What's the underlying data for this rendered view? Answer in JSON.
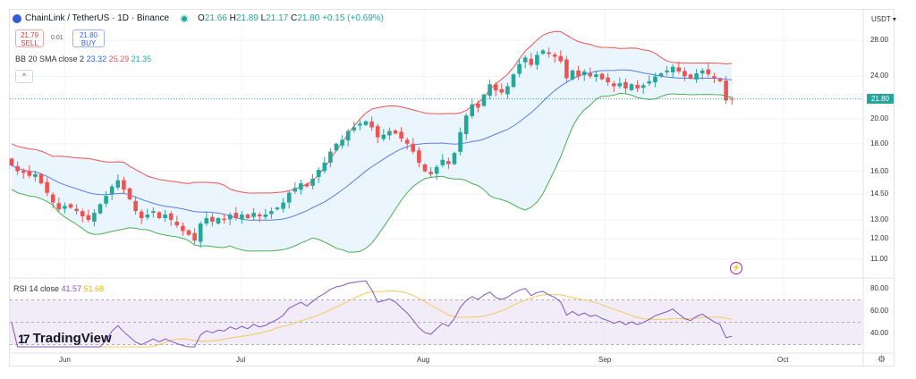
{
  "header": {
    "symbol": "ChainLink / TetherUS · 1D · Binance",
    "ohlc": {
      "o_label": "O",
      "o": "21.66",
      "h_label": "H",
      "h": "21.89",
      "l_label": "L",
      "l": "21.17",
      "c_label": "C",
      "c": "21.80",
      "change": "+0.15 (+0.69%)"
    },
    "sell_price": "21.79",
    "sell_label": "SELL",
    "spread": "0.01",
    "buy_price": "21.80",
    "buy_label": "BUY",
    "bb_label": "BB 20 SMA close 2",
    "bb_basis": "23.32",
    "bb_upper": "25.29",
    "bb_lower": "21.35",
    "collapse_icon": "^"
  },
  "rsi_legend": {
    "label": "RSI 14 close",
    "rsi": "41.57",
    "ma": "51.68"
  },
  "price_axis": {
    "currency": "USDT ▾",
    "last_price": "21.80",
    "ticks": [
      "28.00",
      "24.00",
      "20.00",
      "18.00",
      "16.00",
      "14.50",
      "13.00",
      "12.00",
      "11.00"
    ]
  },
  "rsi_axis": {
    "ticks": [
      "80.00",
      "60.00",
      "40.00"
    ]
  },
  "time_axis": {
    "labels": [
      "Jun",
      "Jul",
      "Aug",
      "Sep",
      "Oct"
    ]
  },
  "watermark": "TradingView",
  "colors": {
    "up": "#26a69a",
    "down": "#ef5350",
    "bb_basis": "#5b7fe0",
    "bb_upper": "#ef5350",
    "bb_lower": "#4caf50",
    "rsi": "#7e57c2",
    "rsi_ma": "#f5c95c"
  },
  "chart_data": {
    "type": "candlestick",
    "title": "ChainLink / TetherUS · 1D · Binance",
    "scale": "log",
    "ylim": [
      10.5,
      29.5
    ],
    "x_labels": [
      "Jun",
      "Jul",
      "Aug",
      "Sep",
      "Oct"
    ],
    "closes": [
      16.4,
      16.0,
      15.9,
      15.7,
      15.8,
      15.2,
      14.6,
      14.0,
      13.6,
      13.8,
      13.7,
      13.5,
      13.2,
      13.0,
      13.4,
      13.9,
      14.4,
      15.0,
      15.4,
      14.8,
      14.2,
      13.5,
      13.1,
      13.3,
      13.5,
      13.1,
      13.3,
      13.0,
      12.7,
      12.4,
      12.2,
      11.9,
      12.8,
      13.1,
      12.9,
      13.1,
      13.0,
      13.3,
      13.1,
      13.3,
      13.1,
      13.4,
      13.2,
      13.3,
      13.5,
      13.7,
      14.0,
      14.6,
      14.9,
      15.2,
      15.0,
      15.5,
      16.1,
      16.6,
      17.4,
      18.0,
      18.3,
      19.0,
      19.3,
      19.6,
      19.8,
      19.3,
      18.5,
      18.7,
      19.0,
      18.8,
      18.4,
      18.0,
      17.4,
      16.6,
      16.0,
      15.8,
      16.3,
      16.8,
      16.5,
      17.3,
      18.9,
      20.3,
      21.3,
      21.0,
      22.2,
      23.2,
      22.6,
      22.4,
      23.0,
      24.2,
      25.3,
      26.0,
      25.2,
      26.3,
      26.8,
      26.4,
      26.1,
      25.6,
      23.8,
      24.6,
      24.0,
      24.5,
      24.0,
      24.2,
      23.7,
      23.4,
      23.0,
      23.3,
      22.8,
      23.2,
      22.8,
      23.1,
      23.5,
      24.0,
      24.3,
      24.6,
      25.0,
      24.5,
      24.0,
      23.8,
      24.3,
      24.6,
      24.2,
      23.8,
      23.5,
      21.65,
      21.8
    ],
    "indicators": {
      "bollinger": {
        "length": 20,
        "stddev": 2
      },
      "rsi": {
        "length": 14,
        "ma_length": 14,
        "levels": [
          70,
          50,
          30
        ],
        "ylim": [
          28,
          88
        ]
      }
    }
  }
}
